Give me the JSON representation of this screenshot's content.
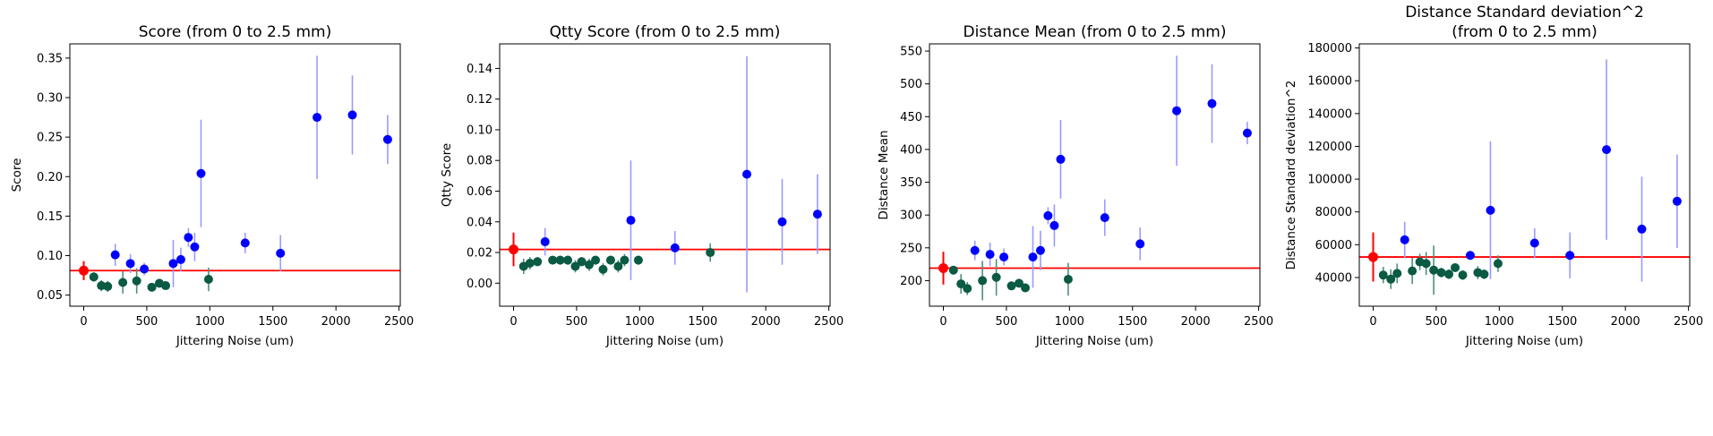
{
  "figure": {
    "background": "#ffffff"
  },
  "colors": {
    "blue": "#0000ff",
    "blue_err": "#9a9aff",
    "green": "#0a5a44",
    "green_err": "#4f8f7f",
    "red": "#ff0000"
  },
  "chart_data": [
    {
      "type": "scatter",
      "title": "Score (from 0 to 2.5 mm)",
      "xlabel": "Jittering Noise (um)",
      "ylabel": "Score",
      "xlim": [
        -110,
        2510
      ],
      "ylim": [
        0.036,
        0.368
      ],
      "xticks": [
        0,
        500,
        1000,
        1500,
        2000,
        2500
      ],
      "yticks": [
        0.05,
        0.1,
        0.15,
        0.2,
        0.25,
        0.3,
        0.35
      ],
      "ytick_labels": [
        "0.05",
        "0.10",
        "0.15",
        "0.20",
        "0.25",
        "0.30",
        "0.35"
      ],
      "reference": {
        "x": 0,
        "y": 0.081,
        "err": 0.012,
        "hline": 0.081
      },
      "series": [
        {
          "color_key": "blue",
          "points": [
            {
              "x": 250,
              "y": 0.101,
              "err": 0.014
            },
            {
              "x": 370,
              "y": 0.09,
              "err": 0.012
            },
            {
              "x": 480,
              "y": 0.083,
              "err": 0.008
            },
            {
              "x": 710,
              "y": 0.09,
              "err": 0.03
            },
            {
              "x": 770,
              "y": 0.095,
              "err": 0.015
            },
            {
              "x": 830,
              "y": 0.123,
              "err": 0.012
            },
            {
              "x": 880,
              "y": 0.111,
              "err": 0.018
            },
            {
              "x": 930,
              "y": 0.204,
              "err": 0.068
            },
            {
              "x": 1280,
              "y": 0.116,
              "err": 0.013
            },
            {
              "x": 1560,
              "y": 0.103,
              "err": 0.023
            },
            {
              "x": 1850,
              "y": 0.275,
              "err": 0.078
            },
            {
              "x": 2130,
              "y": 0.278,
              "err": 0.05
            },
            {
              "x": 2410,
              "y": 0.247,
              "err": 0.031
            }
          ]
        },
        {
          "color_key": "green",
          "points": [
            {
              "x": 80,
              "y": 0.073,
              "err": 0.006
            },
            {
              "x": 140,
              "y": 0.062,
              "err": 0.007
            },
            {
              "x": 190,
              "y": 0.061,
              "err": 0.007
            },
            {
              "x": 310,
              "y": 0.066,
              "err": 0.014
            },
            {
              "x": 420,
              "y": 0.068,
              "err": 0.016
            },
            {
              "x": 540,
              "y": 0.06,
              "err": 0.004
            },
            {
              "x": 600,
              "y": 0.065,
              "err": 0.004
            },
            {
              "x": 650,
              "y": 0.062,
              "err": 0.004
            },
            {
              "x": 990,
              "y": 0.07,
              "err": 0.015
            }
          ]
        }
      ]
    },
    {
      "type": "scatter",
      "title": "Qtty Score (from 0 to 2.5 mm)",
      "xlabel": "Jittering Noise (um)",
      "ylabel": "Qtty Score",
      "xlim": [
        -110,
        2510
      ],
      "ylim": [
        -0.015,
        0.156
      ],
      "xticks": [
        0,
        500,
        1000,
        1500,
        2000,
        2500
      ],
      "yticks": [
        0.0,
        0.02,
        0.04,
        0.06,
        0.08,
        0.1,
        0.12,
        0.14
      ],
      "ytick_labels": [
        "0.00",
        "0.02",
        "0.04",
        "0.06",
        "0.08",
        "0.10",
        "0.12",
        "0.14"
      ],
      "reference": {
        "x": 0,
        "y": 0.022,
        "err": 0.011,
        "hline": 0.022
      },
      "series": [
        {
          "color_key": "blue",
          "points": [
            {
              "x": 250,
              "y": 0.027,
              "err": 0.009
            },
            {
              "x": 930,
              "y": 0.041,
              "err": 0.039
            },
            {
              "x": 1280,
              "y": 0.023,
              "err": 0.011
            },
            {
              "x": 1850,
              "y": 0.071,
              "err": 0.077
            },
            {
              "x": 2130,
              "y": 0.04,
              "err": 0.028
            },
            {
              "x": 2410,
              "y": 0.045,
              "err": 0.026
            }
          ]
        },
        {
          "color_key": "green",
          "points": [
            {
              "x": 80,
              "y": 0.011,
              "err": 0.005
            },
            {
              "x": 130,
              "y": 0.013,
              "err": 0.004
            },
            {
              "x": 190,
              "y": 0.014,
              "err": 0.003
            },
            {
              "x": 310,
              "y": 0.015,
              "err": 0.002
            },
            {
              "x": 370,
              "y": 0.015,
              "err": 0.003
            },
            {
              "x": 430,
              "y": 0.015,
              "err": 0.003
            },
            {
              "x": 490,
              "y": 0.011,
              "err": 0.004
            },
            {
              "x": 540,
              "y": 0.014,
              "err": 0.003
            },
            {
              "x": 600,
              "y": 0.012,
              "err": 0.004
            },
            {
              "x": 650,
              "y": 0.015,
              "err": 0.003
            },
            {
              "x": 710,
              "y": 0.009,
              "err": 0.004
            },
            {
              "x": 770,
              "y": 0.015,
              "err": 0.003
            },
            {
              "x": 830,
              "y": 0.011,
              "err": 0.004
            },
            {
              "x": 880,
              "y": 0.015,
              "err": 0.004
            },
            {
              "x": 990,
              "y": 0.015,
              "err": 0.003
            },
            {
              "x": 1560,
              "y": 0.02,
              "err": 0.006
            }
          ]
        }
      ]
    },
    {
      "type": "scatter",
      "title": "Distance Mean (from 0 to 2.5 mm)",
      "xlabel": "Jittering Noise (um)",
      "ylabel": "Distance Mean",
      "xlim": [
        -110,
        2510
      ],
      "ylim": [
        161,
        561
      ],
      "xticks": [
        0,
        500,
        1000,
        1500,
        2000,
        2500
      ],
      "yticks": [
        200,
        250,
        300,
        350,
        400,
        450,
        500,
        550
      ],
      "ytick_labels": [
        "200",
        "250",
        "300",
        "350",
        "400",
        "450",
        "500",
        "550"
      ],
      "reference": {
        "x": 0,
        "y": 219,
        "err": 25,
        "hline": 219
      },
      "series": [
        {
          "color_key": "blue",
          "points": [
            {
              "x": 250,
              "y": 246,
              "err": 15
            },
            {
              "x": 370,
              "y": 240,
              "err": 18
            },
            {
              "x": 480,
              "y": 236,
              "err": 13
            },
            {
              "x": 710,
              "y": 236,
              "err": 47
            },
            {
              "x": 770,
              "y": 246,
              "err": 30
            },
            {
              "x": 830,
              "y": 299,
              "err": 13
            },
            {
              "x": 880,
              "y": 284,
              "err": 32
            },
            {
              "x": 930,
              "y": 385,
              "err": 60
            },
            {
              "x": 1280,
              "y": 296,
              "err": 28
            },
            {
              "x": 1560,
              "y": 256,
              "err": 25
            },
            {
              "x": 1850,
              "y": 459,
              "err": 84
            },
            {
              "x": 2130,
              "y": 470,
              "err": 60
            },
            {
              "x": 2410,
              "y": 425,
              "err": 17
            }
          ]
        },
        {
          "color_key": "green",
          "points": [
            {
              "x": 80,
              "y": 216,
              "err": 5
            },
            {
              "x": 140,
              "y": 195,
              "err": 15
            },
            {
              "x": 190,
              "y": 188,
              "err": 10
            },
            {
              "x": 310,
              "y": 200,
              "err": 30
            },
            {
              "x": 420,
              "y": 205,
              "err": 28
            },
            {
              "x": 540,
              "y": 192,
              "err": 5
            },
            {
              "x": 600,
              "y": 196,
              "err": 5
            },
            {
              "x": 650,
              "y": 189,
              "err": 6
            },
            {
              "x": 990,
              "y": 202,
              "err": 25
            }
          ]
        }
      ]
    },
    {
      "type": "scatter",
      "title": "Distance Standard deviation^2\n(from 0 to 2.5 mm)",
      "xlabel": "Jittering Noise (um)",
      "ylabel": "Distance Standard deviation^2",
      "xlim": [
        -110,
        2510
      ],
      "ylim": [
        22500,
        182500
      ],
      "xticks": [
        0,
        500,
        1000,
        1500,
        2000,
        2500
      ],
      "yticks": [
        40000,
        60000,
        80000,
        100000,
        120000,
        140000,
        160000,
        180000
      ],
      "ytick_labels": [
        "40000",
        "60000",
        "80000",
        "100000",
        "120000",
        "140000",
        "160000",
        "180000"
      ],
      "reference": {
        "x": 0,
        "y": 52500,
        "err": 15000,
        "hline": 52500
      },
      "series": [
        {
          "color_key": "blue",
          "points": [
            {
              "x": 250,
              "y": 63000,
              "err": 11000
            },
            {
              "x": 770,
              "y": 53500,
              "err": 2000
            },
            {
              "x": 930,
              "y": 81000,
              "err": 42000
            },
            {
              "x": 1280,
              "y": 61000,
              "err": 9000
            },
            {
              "x": 1560,
              "y": 53500,
              "err": 14000
            },
            {
              "x": 1850,
              "y": 118000,
              "err": 55000
            },
            {
              "x": 2130,
              "y": 69500,
              "err": 32000
            },
            {
              "x": 2410,
              "y": 86500,
              "err": 28500
            }
          ]
        },
        {
          "color_key": "green",
          "points": [
            {
              "x": 80,
              "y": 41500,
              "err": 5000
            },
            {
              "x": 140,
              "y": 39000,
              "err": 6000
            },
            {
              "x": 190,
              "y": 42500,
              "err": 6000
            },
            {
              "x": 310,
              "y": 44000,
              "err": 8000
            },
            {
              "x": 370,
              "y": 49500,
              "err": 5000
            },
            {
              "x": 420,
              "y": 48500,
              "err": 7000
            },
            {
              "x": 480,
              "y": 44500,
              "err": 15000
            },
            {
              "x": 540,
              "y": 43000,
              "err": 3000
            },
            {
              "x": 600,
              "y": 42000,
              "err": 3000
            },
            {
              "x": 650,
              "y": 46000,
              "err": 2000
            },
            {
              "x": 710,
              "y": 41500,
              "err": 3000
            },
            {
              "x": 830,
              "y": 43000,
              "err": 4000
            },
            {
              "x": 880,
              "y": 42000,
              "err": 3000
            },
            {
              "x": 990,
              "y": 48500,
              "err": 5000
            }
          ]
        }
      ]
    }
  ]
}
